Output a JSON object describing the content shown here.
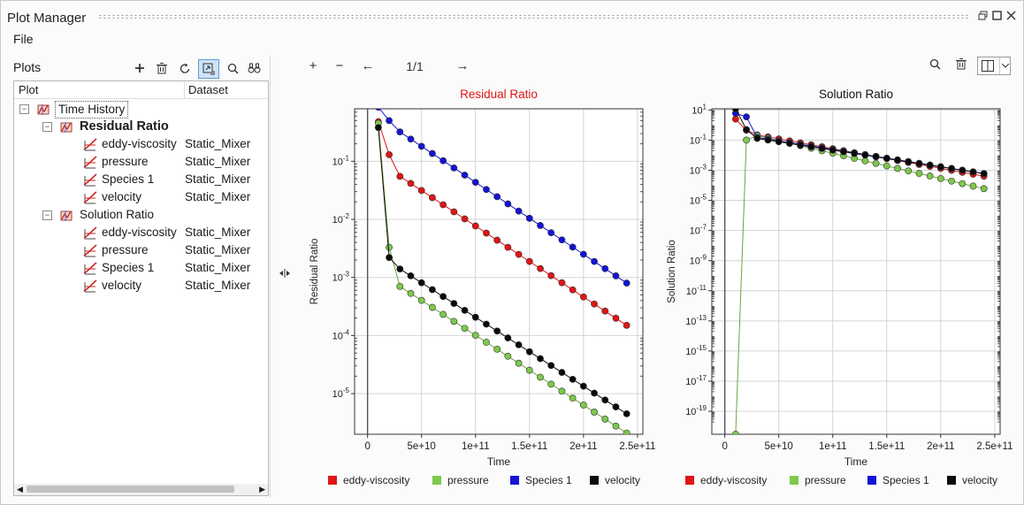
{
  "window": {
    "title": "Plot Manager",
    "controls": [
      "restore-icon",
      "maximize-icon",
      "close-icon"
    ]
  },
  "menu": {
    "file": "File"
  },
  "plots_panel": {
    "title": "Plots",
    "tools": [
      "add-icon",
      "trash-icon",
      "refresh-icon",
      "sync-icon",
      "search-icon",
      "compare-icon"
    ],
    "columns": {
      "plot": "Plot",
      "dataset": "Dataset"
    },
    "tree": {
      "root": {
        "label": "Time History",
        "expanded": true
      },
      "groups": [
        {
          "label": "Residual Ratio",
          "bold": true,
          "items": [
            {
              "label": "eddy-viscosity",
              "dataset": "Static_Mixer"
            },
            {
              "label": "pressure",
              "dataset": "Static_Mixer"
            },
            {
              "label": "Species 1",
              "dataset": "Static_Mixer"
            },
            {
              "label": "velocity",
              "dataset": "Static_Mixer"
            }
          ]
        },
        {
          "label": "Solution Ratio",
          "bold": false,
          "items": [
            {
              "label": "eddy-viscosity",
              "dataset": "Static_Mixer"
            },
            {
              "label": "pressure",
              "dataset": "Static_Mixer"
            },
            {
              "label": "Species 1",
              "dataset": "Static_Mixer"
            },
            {
              "label": "velocity",
              "dataset": "Static_Mixer"
            }
          ]
        }
      ]
    }
  },
  "plot_toolbar": {
    "add": "+",
    "remove": "−",
    "prev": "←",
    "page": "1/1",
    "next": "→"
  },
  "colors": {
    "eddy-viscosity": "#e01515",
    "pressure": "#7dc94a",
    "Species 1": "#1313d8",
    "velocity": "#0a0a0a",
    "title_red": "#e01515",
    "accent": "#5b9bd5"
  },
  "chart_data": [
    {
      "type": "line",
      "title": "Residual Ratio",
      "xlabel": "Time",
      "ylabel": "Residual Ratio",
      "yscale": "log",
      "xlim": [
        -12000000000.0,
        255000000000.0
      ],
      "ylim": [
        2e-06,
        0.8
      ],
      "xticks": [
        0,
        50000000000.0,
        100000000000.0,
        150000000000.0,
        200000000000.0,
        250000000000.0
      ],
      "xtick_labels": [
        "0",
        "5e+10",
        "1e+11",
        "1.5e+11",
        "2e+11",
        "2.5e+11"
      ],
      "yticks": [
        1e-05,
        0.0001,
        0.001,
        0.01,
        0.1
      ],
      "ytick_labels": [
        {
          "b": "10",
          "e": "-5"
        },
        {
          "b": "10",
          "e": "-4"
        },
        {
          "b": "10",
          "e": "-3"
        },
        {
          "b": "10",
          "e": "-2"
        },
        {
          "b": "10",
          "e": "-1"
        }
      ],
      "x_start": 10000000000.0,
      "x_step": 10000000000.0,
      "n": 24,
      "series": [
        {
          "name": "eddy-viscosity",
          "endpoints": [
            0.48,
            0.13,
            0.055,
            0.00015
          ]
        },
        {
          "name": "pressure",
          "endpoints": [
            0.45,
            0.0033,
            0.0007,
            2.1e-06
          ]
        },
        {
          "name": "Species 1",
          "endpoints": [
            0.85,
            0.5,
            0.32,
            0.0008
          ]
        },
        {
          "name": "velocity",
          "endpoints": [
            0.38,
            0.0022,
            0.0014,
            4.5e-06
          ]
        }
      ],
      "legend": [
        "eddy-viscosity",
        "pressure",
        "Species 1",
        "velocity"
      ],
      "legend_position": "bottom"
    },
    {
      "type": "line",
      "title": "Solution Ratio",
      "xlabel": "Time",
      "ylabel": "Solution Ratio",
      "yscale": "log",
      "xlim": [
        -12000000000.0,
        255000000000.0
      ],
      "ylim": [
        3e-21,
        12
      ],
      "xticks": [
        0,
        50000000000.0,
        100000000000.0,
        150000000000.0,
        200000000000.0,
        250000000000.0
      ],
      "xtick_labels": [
        "0",
        "5e+10",
        "1e+11",
        "1.5e+11",
        "2e+11",
        "2.5e+11"
      ],
      "yticks": [
        1e-19,
        1e-17,
        1e-15,
        1e-13,
        1e-11,
        1e-09,
        1e-07,
        1e-05,
        0.001,
        0.1,
        10
      ],
      "ytick_labels": [
        {
          "b": "10",
          "e": "-19"
        },
        {
          "b": "10",
          "e": "-17"
        },
        {
          "b": "10",
          "e": "-15"
        },
        {
          "b": "10",
          "e": "-13"
        },
        {
          "b": "10",
          "e": "-11"
        },
        {
          "b": "10",
          "e": "-9"
        },
        {
          "b": "10",
          "e": "-7"
        },
        {
          "b": "10",
          "e": "-5"
        },
        {
          "b": "10",
          "e": "-3"
        },
        {
          "b": "10",
          "e": "-1"
        },
        {
          "b": "10",
          "e": "1"
        }
      ],
      "x_start": 10000000000.0,
      "x_step": 10000000000.0,
      "n": 24,
      "series": [
        {
          "name": "eddy-viscosity",
          "endpoints": [
            2.5,
            0.45,
            0.22,
            0.0004
          ]
        },
        {
          "name": "pressure",
          "endpoints": [
            3e-21,
            0.1,
            0.2,
            6e-05
          ]
        },
        {
          "name": "Species 1",
          "endpoints": [
            6,
            3.5,
            0.15,
            0.0006
          ]
        },
        {
          "name": "velocity",
          "endpoints": [
            12,
            0.5,
            0.13,
            0.0006
          ]
        }
      ],
      "legend": [
        "eddy-viscosity",
        "pressure",
        "Species 1",
        "velocity"
      ],
      "legend_position": "bottom"
    }
  ]
}
